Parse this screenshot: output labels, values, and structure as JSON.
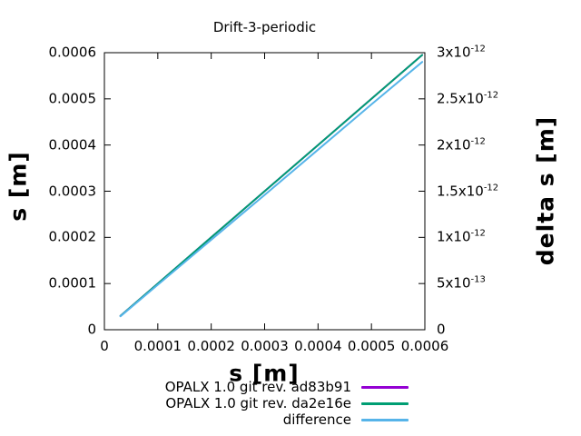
{
  "chart_data": {
    "type": "line",
    "title": "Drift-3-periodic",
    "xlabel": "s [m]",
    "ylabel": "s [m]",
    "y2label": "delta s [m]",
    "xlim": [
      0,
      0.0006
    ],
    "ylim": [
      0,
      0.0006
    ],
    "y2lim": [
      0,
      3e-12
    ],
    "grid": false,
    "legend_position": "below-plot-right",
    "background_color": "#ffffff",
    "border_color": "#000000",
    "text_color": "#000000",
    "x_ticks": {
      "values": [
        0,
        0.0001,
        0.0002,
        0.0003,
        0.0004,
        0.0005,
        0.0006
      ],
      "labels": [
        "0",
        "0.0001",
        "0.0002",
        "0.0003",
        "0.0004",
        "0.0005",
        "0.0006"
      ]
    },
    "y_ticks": {
      "values": [
        0,
        0.0001,
        0.0002,
        0.0003,
        0.0004,
        0.0005,
        0.0006
      ],
      "labels": [
        "0",
        "0.0001",
        "0.0002",
        "0.0003",
        "0.0004",
        "0.0005",
        "0.0006"
      ]
    },
    "y2_ticks": {
      "values": [
        0,
        5e-13,
        1e-12,
        1.5e-12,
        2e-12,
        2.5e-12,
        3e-12
      ],
      "labels": [
        "0",
        "5x10^-13",
        "1x10^-12",
        "1.5x10^-12",
        "2x10^-12",
        "2.5x10^-12",
        "3x10^-12"
      ]
    },
    "series": [
      {
        "name": "OPALX 1.0 git rev. ad83b91",
        "color": "#9400d3",
        "axis": "left",
        "x": [
          3e-05,
          0.0001,
          0.0002,
          0.0003,
          0.0004,
          0.0005,
          0.000595
        ],
        "y": [
          3e-05,
          0.0001,
          0.0002,
          0.0003,
          0.0004,
          0.0005,
          0.000595
        ]
      },
      {
        "name": "OPALX 1.0 git rev. da2e16e",
        "color": "#009e73",
        "axis": "left",
        "x": [
          3e-05,
          0.0001,
          0.0002,
          0.0003,
          0.0004,
          0.0005,
          0.000595
        ],
        "y": [
          3e-05,
          0.0001,
          0.0002,
          0.0003,
          0.0004,
          0.0005,
          0.000595
        ]
      },
      {
        "name": "difference",
        "color": "#56b4e9",
        "axis": "right",
        "x": [
          3e-05,
          0.0001,
          0.0002,
          0.0003,
          0.0004,
          0.0005,
          0.000595
        ],
        "y": [
          1.46e-13,
          4.87e-13,
          9.74e-13,
          1.46e-12,
          1.95e-12,
          2.44e-12,
          2.9e-12
        ]
      }
    ]
  }
}
